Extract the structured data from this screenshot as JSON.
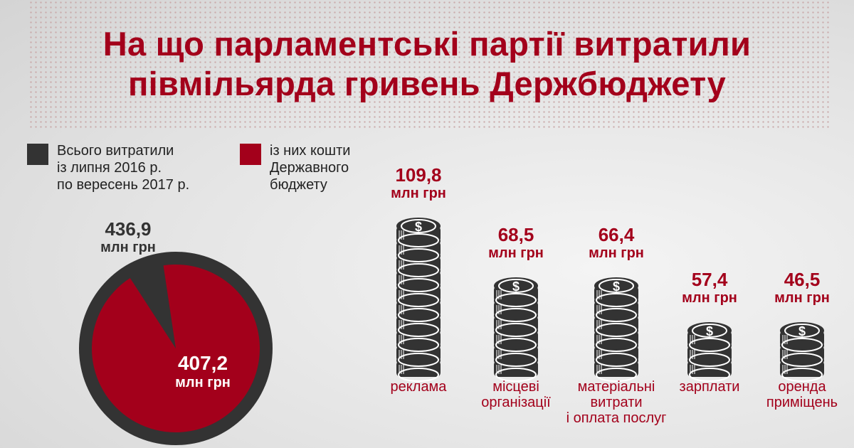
{
  "title": [
    "На що парламентські партії витратили",
    "півмільярда гривень Держбюджету"
  ],
  "legend": [
    {
      "label": [
        "Всього витратили",
        "із липня 2016 р.",
        "по вересень 2017 р."
      ],
      "color": "#333333"
    },
    {
      "label": [
        "із них кошти",
        "Державного",
        "бюджету"
      ],
      "color": "#a3001b"
    }
  ],
  "chart_data": [
    {
      "type": "pie",
      "total": {
        "value": "436,9",
        "unit": "млн грн",
        "number": 436.9,
        "color": "#333333"
      },
      "state_budget": {
        "value": "407,2",
        "unit": "млн грн",
        "number": 407.2,
        "color": "#a3001b"
      }
    },
    {
      "type": "bar",
      "mark": "coin-stack",
      "categories": [
        "реклама",
        "місцеві організації",
        "матеріальні витрати і оплата послуг",
        "зарплати",
        "оренда приміщень"
      ],
      "category_lines": [
        [
          "реклама"
        ],
        [
          "місцеві",
          "організації"
        ],
        [
          "матеріальні",
          "витрати",
          "і оплата послуг"
        ],
        [
          "зарплати"
        ],
        [
          "оренда",
          "приміщень"
        ]
      ],
      "values": [
        109.8,
        68.5,
        66.4,
        57.4,
        46.5
      ],
      "labels": [
        "109,8",
        "68,5",
        "66,4",
        "57,4",
        "46,5"
      ],
      "unit": "млн грн",
      "coins": [
        10,
        6,
        6,
        3,
        3
      ],
      "color": "#a3001b"
    }
  ]
}
